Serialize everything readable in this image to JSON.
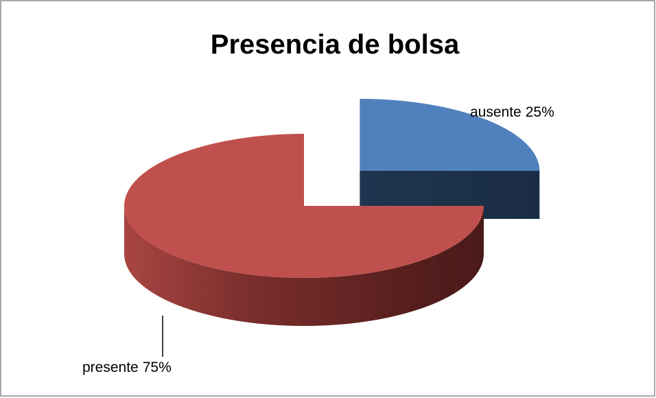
{
  "chart_data": {
    "type": "pie",
    "title": "Presencia de bolsa",
    "categories": [
      "ausente",
      "presente"
    ],
    "values": [
      25,
      75
    ],
    "value_labels": [
      "25%",
      "75%"
    ],
    "colors": [
      "#4f81bd",
      "#c0504d"
    ]
  }
}
